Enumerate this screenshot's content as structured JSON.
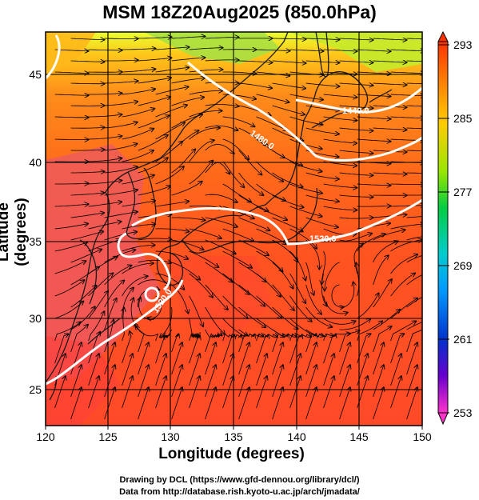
{
  "title": "MSM 18Z20Aug2025 (850.0hPa)",
  "x_axis_label": "Longitude (degrees)",
  "y_axis_label": "Latitude  (degrees)",
  "x_ticks": [
    "120",
    "125",
    "130",
    "135",
    "140",
    "145",
    "150"
  ],
  "y_ticks": [
    "25",
    "30",
    "35",
    "40",
    "45"
  ],
  "colorbar_ticks": [
    "293",
    "285",
    "277",
    "269",
    "261",
    "253"
  ],
  "contour_labels": [
    "1440.0",
    "1480.0",
    "1520.0",
    "1520.0"
  ],
  "credits": {
    "line1": "Drawing by DCL (https://www.gfd-dennou.org/library/dcl/)",
    "line2": "Data from http://database.rish.kyoto-u.ac.jp/arch/jmadata/"
  },
  "map_data": {
    "lon_range": [
      120,
      150
    ],
    "lat_range": [
      22.5,
      47.6
    ],
    "colorbar_range": [
      253,
      293
    ],
    "field_colors": {
      "north": "#c8e82a",
      "midnorth": "#ff8c1a",
      "center": "#ff5c1a",
      "south": "#ff4a28",
      "warm_patch": "#ee5a6a"
    },
    "colorbar_colors": [
      "#ff3300",
      "#ff8800",
      "#ffcc00",
      "#99e600",
      "#00cc44",
      "#00cccc",
      "#0099ff",
      "#0033cc",
      "#6600cc",
      "#ff33cc"
    ]
  }
}
